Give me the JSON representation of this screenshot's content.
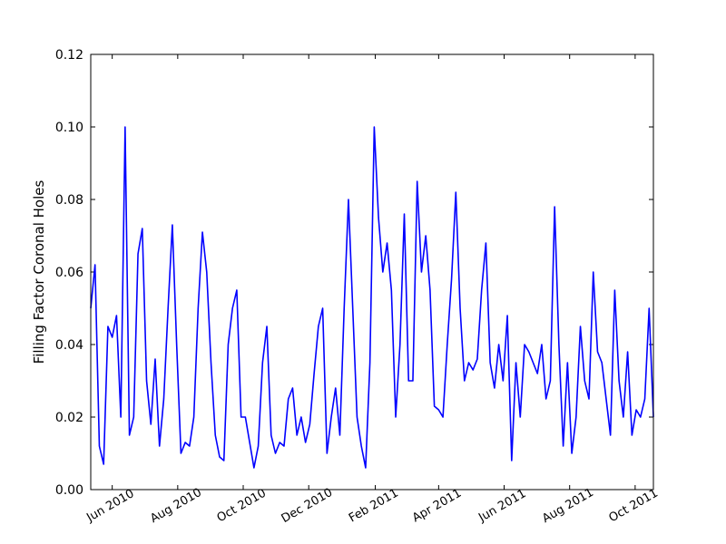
{
  "chart_data": {
    "type": "line",
    "y_label": "Filling Factor Coronal Holes",
    "color": "#0000ff",
    "x": [
      "2010-05-12",
      "2010-05-16",
      "2010-05-20",
      "2010-05-24",
      "2010-05-28",
      "2010-06-01",
      "2010-06-05",
      "2010-06-09",
      "2010-06-13",
      "2010-06-17",
      "2010-06-21",
      "2010-06-25",
      "2010-06-29",
      "2010-07-03",
      "2010-07-07",
      "2010-07-11",
      "2010-07-15",
      "2010-07-19",
      "2010-07-23",
      "2010-07-27",
      "2010-07-31",
      "2010-08-04",
      "2010-08-08",
      "2010-08-12",
      "2010-08-16",
      "2010-08-20",
      "2010-08-24",
      "2010-08-28",
      "2010-09-01",
      "2010-09-05",
      "2010-09-09",
      "2010-09-13",
      "2010-09-17",
      "2010-09-21",
      "2010-09-25",
      "2010-09-29",
      "2010-10-03",
      "2010-10-07",
      "2010-10-11",
      "2010-10-15",
      "2010-10-19",
      "2010-10-23",
      "2010-10-27",
      "2010-10-31",
      "2010-11-04",
      "2010-11-08",
      "2010-11-12",
      "2010-11-16",
      "2010-11-20",
      "2010-11-24",
      "2010-11-28",
      "2010-12-02",
      "2010-12-06",
      "2010-12-10",
      "2010-12-14",
      "2010-12-18",
      "2010-12-22",
      "2010-12-26",
      "2010-12-30",
      "2011-01-03",
      "2011-01-07",
      "2011-01-11",
      "2011-01-15",
      "2011-01-19",
      "2011-01-23",
      "2011-01-27",
      "2011-01-31",
      "2011-02-04",
      "2011-02-08",
      "2011-02-12",
      "2011-02-16",
      "2011-02-20",
      "2011-02-24",
      "2011-02-28",
      "2011-03-04",
      "2011-03-08",
      "2011-03-12",
      "2011-03-16",
      "2011-03-20",
      "2011-03-24",
      "2011-03-28",
      "2011-04-01",
      "2011-04-05",
      "2011-04-09",
      "2011-04-13",
      "2011-04-17",
      "2011-04-21",
      "2011-04-25",
      "2011-04-29",
      "2011-05-03",
      "2011-05-07",
      "2011-05-11",
      "2011-05-15",
      "2011-05-19",
      "2011-05-23",
      "2011-05-27",
      "2011-05-31",
      "2011-06-04",
      "2011-06-08",
      "2011-06-12",
      "2011-06-16",
      "2011-06-20",
      "2011-06-24",
      "2011-06-28",
      "2011-07-02",
      "2011-07-06",
      "2011-07-10",
      "2011-07-14",
      "2011-07-18",
      "2011-07-22",
      "2011-07-26",
      "2011-07-30",
      "2011-08-03",
      "2011-08-07",
      "2011-08-11",
      "2011-08-15",
      "2011-08-19",
      "2011-08-23",
      "2011-08-27",
      "2011-08-31",
      "2011-09-04",
      "2011-09-08",
      "2011-09-12",
      "2011-09-16",
      "2011-09-20",
      "2011-09-24",
      "2011-09-28",
      "2011-10-02",
      "2011-10-06",
      "2011-10-10",
      "2011-10-14",
      "2011-10-18"
    ],
    "values": [
      0.05,
      0.062,
      0.012,
      0.007,
      0.045,
      0.042,
      0.048,
      0.02,
      0.1,
      0.015,
      0.02,
      0.065,
      0.072,
      0.03,
      0.018,
      0.036,
      0.012,
      0.025,
      0.05,
      0.073,
      0.04,
      0.01,
      0.013,
      0.012,
      0.02,
      0.05,
      0.071,
      0.06,
      0.035,
      0.015,
      0.009,
      0.008,
      0.04,
      0.05,
      0.055,
      0.02,
      0.02,
      0.013,
      0.006,
      0.012,
      0.035,
      0.045,
      0.015,
      0.01,
      0.013,
      0.012,
      0.025,
      0.028,
      0.015,
      0.02,
      0.013,
      0.018,
      0.032,
      0.045,
      0.05,
      0.01,
      0.02,
      0.028,
      0.015,
      0.05,
      0.08,
      0.05,
      0.02,
      0.012,
      0.006,
      0.035,
      0.1,
      0.075,
      0.06,
      0.068,
      0.055,
      0.02,
      0.04,
      0.076,
      0.03,
      0.03,
      0.085,
      0.06,
      0.07,
      0.055,
      0.023,
      0.022,
      0.02,
      0.04,
      0.058,
      0.082,
      0.05,
      0.03,
      0.035,
      0.033,
      0.036,
      0.055,
      0.068,
      0.035,
      0.028,
      0.04,
      0.03,
      0.048,
      0.008,
      0.035,
      0.02,
      0.04,
      0.038,
      0.035,
      0.032,
      0.04,
      0.025,
      0.03,
      0.078,
      0.04,
      0.012,
      0.035,
      0.01,
      0.02,
      0.045,
      0.03,
      0.025,
      0.06,
      0.038,
      0.035,
      0.025,
      0.015,
      0.055,
      0.03,
      0.02,
      0.038,
      0.015,
      0.022,
      0.02,
      0.025,
      0.05,
      0.02
    ],
    "xlim": [
      "2010-05-12",
      "2011-10-18"
    ],
    "xticks": [
      {
        "value": "2010-06-01",
        "label": "Jun 2010"
      },
      {
        "value": "2010-08-01",
        "label": "Aug 2010"
      },
      {
        "value": "2010-10-01",
        "label": "Oct 2010"
      },
      {
        "value": "2010-12-01",
        "label": "Dec 2010"
      },
      {
        "value": "2011-02-01",
        "label": "Feb 2011"
      },
      {
        "value": "2011-04-01",
        "label": "Apr 2011"
      },
      {
        "value": "2011-06-01",
        "label": "Jun 2011"
      },
      {
        "value": "2011-08-01",
        "label": "Aug 2011"
      },
      {
        "value": "2011-10-01",
        "label": "Oct 2011"
      }
    ],
    "ylim": [
      0,
      0.12
    ],
    "yticks": [
      {
        "value": 0,
        "label": "0.00"
      },
      {
        "value": 0.02,
        "label": "0.02"
      },
      {
        "value": 0.04,
        "label": "0.04"
      },
      {
        "value": 0.06,
        "label": "0.06"
      },
      {
        "value": 0.08,
        "label": "0.08"
      },
      {
        "value": 0.1,
        "label": "0.10"
      },
      {
        "value": 0.12,
        "label": "0.12"
      }
    ],
    "grid": false
  }
}
